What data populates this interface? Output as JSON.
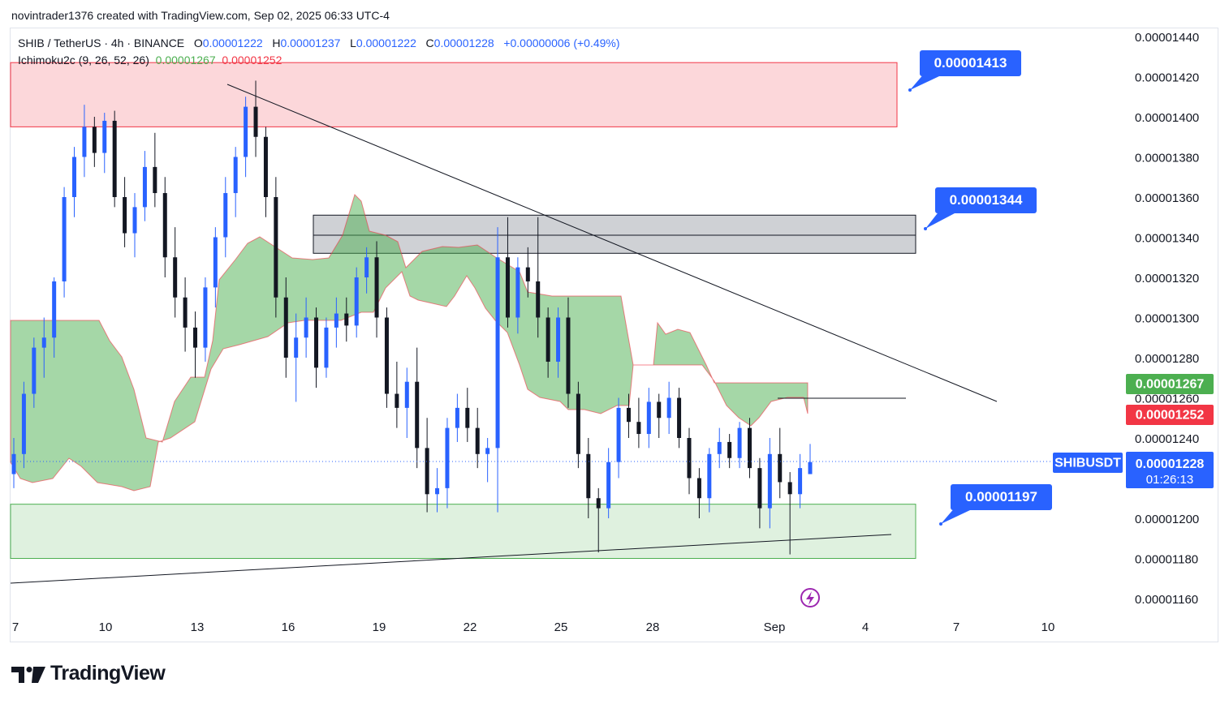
{
  "credit": "novintrader1376 created with TradingView.com, Sep 02, 2025 06:33 UTC-4",
  "legend": {
    "symbol": "SHIB / TetherUS · 4h · BINANCE",
    "o_label": "O",
    "o": "0.00001222",
    "h_label": "H",
    "h": "0.00001237",
    "l_label": "L",
    "l": "0.00001222",
    "c_label": "C",
    "c": "0.00001228",
    "change": "+0.00000006 (+0.49%)",
    "indicator": "Ichimoku2c (9, 26, 52, 26)",
    "ind_v1": "0.00001267",
    "ind_v2": "0.00001252"
  },
  "brand": "TradingView",
  "colors": {
    "up": "#2962ff",
    "down": "#131722",
    "cloud": "#4caf50",
    "red": "#f23645",
    "accent": "#2962ff"
  },
  "chart_data": {
    "type": "candlestick",
    "price_axis": [
      "0.00001440",
      "0.00001420",
      "0.00001400",
      "0.00001380",
      "0.00001360",
      "0.00001340",
      "0.00001320",
      "0.00001300",
      "0.00001280",
      "0.00001260",
      "0.00001240",
      "0.00001200",
      "0.00001180",
      "0.00001160"
    ],
    "ylim": [
      1.15e-05,
      1.45e-05
    ],
    "time_axis": [
      "7",
      "10",
      "13",
      "16",
      "19",
      "22",
      "25",
      "28",
      "Sep",
      "4",
      "7",
      "10"
    ],
    "price_labels": {
      "top_cloud": "0.00001267",
      "bottom_cloud": "0.00001252",
      "symbol_tag": "SHIBUSDT",
      "last": "0.00001228",
      "countdown": "01:26:13"
    },
    "callouts": [
      "0.00001413",
      "0.00001344",
      "0.00001197"
    ],
    "zones": [
      {
        "type": "resistance",
        "from": 1.395e-05,
        "to": 1.427e-05
      },
      {
        "type": "range",
        "from": 1.332e-05,
        "to": 1.351e-05
      },
      {
        "type": "support",
        "from": 1.18e-05,
        "to": 1.207e-05
      }
    ],
    "candles": [
      [
        1.222e-05,
        1.24e-05,
        1.215e-05,
        1.232e-05
      ],
      [
        1.232e-05,
        1.268e-05,
        1.225e-05,
        1.262e-05
      ],
      [
        1.262e-05,
        1.29e-05,
        1.255e-05,
        1.285e-05
      ],
      [
        1.285e-05,
        1.3e-05,
        1.27e-05,
        1.29e-05
      ],
      [
        1.29e-05,
        1.32e-05,
        1.28e-05,
        1.318e-05
      ],
      [
        1.318e-05,
        1.365e-05,
        1.31e-05,
        1.36e-05
      ],
      [
        1.36e-05,
        1.385e-05,
        1.35e-05,
        1.38e-05
      ],
      [
        1.38e-05,
        1.406e-05,
        1.37e-05,
        1.395e-05
      ],
      [
        1.395e-05,
        1.4e-05,
        1.375e-05,
        1.382e-05
      ],
      [
        1.382e-05,
        1.402e-05,
        1.372e-05,
        1.398e-05
      ],
      [
        1.398e-05,
        1.403e-05,
        1.355e-05,
        1.36e-05
      ],
      [
        1.36e-05,
        1.37e-05,
        1.335e-05,
        1.342e-05
      ],
      [
        1.342e-05,
        1.362e-05,
        1.33e-05,
        1.355e-05
      ],
      [
        1.355e-05,
        1.383e-05,
        1.348e-05,
        1.375e-05
      ],
      [
        1.375e-05,
        1.392e-05,
        1.355e-05,
        1.362e-05
      ],
      [
        1.362e-05,
        1.37e-05,
        1.32e-05,
        1.33e-05
      ],
      [
        1.33e-05,
        1.345e-05,
        1.3e-05,
        1.31e-05
      ],
      [
        1.31e-05,
        1.32e-05,
        1.283e-05,
        1.295e-05
      ],
      [
        1.295e-05,
        1.303e-05,
        1.27e-05,
        1.285e-05
      ],
      [
        1.285e-05,
        1.32e-05,
        1.278e-05,
        1.315e-05
      ],
      [
        1.315e-05,
        1.345e-05,
        1.305e-05,
        1.34e-05
      ],
      [
        1.34e-05,
        1.37e-05,
        1.33e-05,
        1.362e-05
      ],
      [
        1.362e-05,
        1.385e-05,
        1.35e-05,
        1.38e-05
      ],
      [
        1.38e-05,
        1.41e-05,
        1.37e-05,
        1.405e-05
      ],
      [
        1.405e-05,
        1.418e-05,
        1.38e-05,
        1.39e-05
      ],
      [
        1.39e-05,
        1.395e-05,
        1.35e-05,
        1.36e-05
      ],
      [
        1.36e-05,
        1.37e-05,
        1.3e-05,
        1.31e-05
      ],
      [
        1.31e-05,
        1.32e-05,
        1.27e-05,
        1.28e-05
      ],
      [
        1.28e-05,
        1.302e-05,
        1.258e-05,
        1.29e-05
      ],
      [
        1.29e-05,
        1.31e-05,
        1.28e-05,
        1.3e-05
      ],
      [
        1.3e-05,
        1.305e-05,
        1.265e-05,
        1.275e-05
      ],
      [
        1.275e-05,
        1.3e-05,
        1.27e-05,
        1.295e-05
      ],
      [
        1.295e-05,
        1.31e-05,
        1.285e-05,
        1.302e-05
      ],
      [
        1.302e-05,
        1.31e-05,
        1.288e-05,
        1.296e-05
      ],
      [
        1.296e-05,
        1.325e-05,
        1.29e-05,
        1.32e-05
      ],
      [
        1.32e-05,
        1.335e-05,
        1.312e-05,
        1.33e-05
      ],
      [
        1.33e-05,
        1.338e-05,
        1.29e-05,
        1.3e-05
      ],
      [
        1.3e-05,
        1.305e-05,
        1.255e-05,
        1.262e-05
      ],
      [
        1.262e-05,
        1.278e-05,
        1.245e-05,
        1.255e-05
      ],
      [
        1.255e-05,
        1.275e-05,
        1.24e-05,
        1.268e-05
      ],
      [
        1.268e-05,
        1.285e-05,
        1.225e-05,
        1.235e-05
      ],
      [
        1.235e-05,
        1.25e-05,
        1.203e-05,
        1.212e-05
      ],
      [
        1.212e-05,
        1.225e-05,
        1.203e-05,
        1.215e-05
      ],
      [
        1.215e-05,
        1.25e-05,
        1.205e-05,
        1.245e-05
      ],
      [
        1.245e-05,
        1.262e-05,
        1.238e-05,
        1.255e-05
      ],
      [
        1.255e-05,
        1.265e-05,
        1.238e-05,
        1.245e-05
      ],
      [
        1.245e-05,
        1.255e-05,
        1.225e-05,
        1.232e-05
      ],
      [
        1.232e-05,
        1.24e-05,
        1.218e-05,
        1.235e-05
      ],
      [
        1.235e-05,
        1.345e-05,
        1.203e-05,
        1.33e-05
      ],
      [
        1.33e-05,
        1.35e-05,
        1.295e-05,
        1.3e-05
      ],
      [
        1.3e-05,
        1.33e-05,
        1.292e-05,
        1.325e-05
      ],
      [
        1.325e-05,
        1.335e-05,
        1.31e-05,
        1.318e-05
      ],
      [
        1.318e-05,
        1.35e-05,
        1.29e-05,
        1.3e-05
      ],
      [
        1.3e-05,
        1.305e-05,
        1.27e-05,
        1.278e-05
      ],
      [
        1.278e-05,
        1.305e-05,
        1.27e-05,
        1.3e-05
      ],
      [
        1.3e-05,
        1.31e-05,
        1.255e-05,
        1.262e-05
      ],
      [
        1.262e-05,
        1.268e-05,
        1.225e-05,
        1.232e-05
      ],
      [
        1.232e-05,
        1.24e-05,
        1.2e-05,
        1.21e-05
      ],
      [
        1.21e-05,
        1.215e-05,
        1.183e-05,
        1.205e-05
      ],
      [
        1.205e-05,
        1.235e-05,
        1.2e-05,
        1.228e-05
      ],
      [
        1.228e-05,
        1.26e-05,
        1.22e-05,
        1.255e-05
      ],
      [
        1.255e-05,
        1.262e-05,
        1.24e-05,
        1.248e-05
      ],
      [
        1.248e-05,
        1.26e-05,
        1.235e-05,
        1.242e-05
      ],
      [
        1.242e-05,
        1.265e-05,
        1.235e-05,
        1.258e-05
      ],
      [
        1.258e-05,
        1.262e-05,
        1.24e-05,
        1.25e-05
      ],
      [
        1.25e-05,
        1.268e-05,
        1.242e-05,
        1.26e-05
      ],
      [
        1.26e-05,
        1.265e-05,
        1.235e-05,
        1.24e-05
      ],
      [
        1.24e-05,
        1.245e-05,
        1.212e-05,
        1.22e-05
      ],
      [
        1.22e-05,
        1.225e-05,
        1.2e-05,
        1.21e-05
      ],
      [
        1.21e-05,
        1.235e-05,
        1.203e-05,
        1.232e-05
      ],
      [
        1.232e-05,
        1.245e-05,
        1.225e-05,
        1.238e-05
      ],
      [
        1.238e-05,
        1.242e-05,
        1.225e-05,
        1.23e-05
      ],
      [
        1.23e-05,
        1.248e-05,
        1.225e-05,
        1.245e-05
      ],
      [
        1.245e-05,
        1.25e-05,
        1.22e-05,
        1.225e-05
      ],
      [
        1.225e-05,
        1.23e-05,
        1.195e-05,
        1.205e-05
      ],
      [
        1.205e-05,
        1.24e-05,
        1.195e-05,
        1.232e-05
      ],
      [
        1.232e-05,
        1.245e-05,
        1.21e-05,
        1.218e-05
      ],
      [
        1.218e-05,
        1.223e-05,
        1.182e-05,
        1.212e-05
      ],
      [
        1.212e-05,
        1.232e-05,
        1.205e-05,
        1.225e-05
      ],
      [
        1.222e-05,
        1.237e-05,
        1.222e-05,
        1.228e-05
      ]
    ],
    "trendlines": [
      {
        "name": "descending",
        "from": [
          0.0,
          1.418e-05
        ],
        "to": [
          1.0,
          1.258e-05
        ]
      },
      {
        "name": "ascending",
        "from": [
          0.0,
          1.172e-05
        ],
        "to": [
          1.0,
          1.192e-05
        ]
      }
    ]
  }
}
